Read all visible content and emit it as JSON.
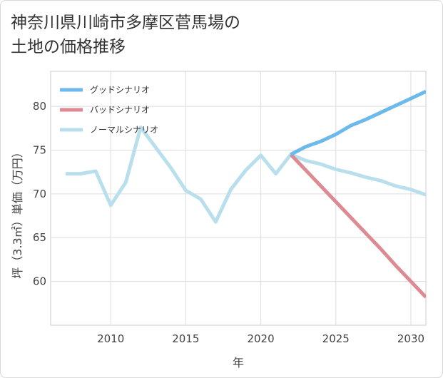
{
  "page": {
    "title_line1": "神奈川県川崎市多摩区菅馬場の",
    "title_line2": "土地の価格推移"
  },
  "chart_data": {
    "type": "line",
    "title": "神奈川県川崎市多摩区菅馬場の土地の価格推移",
    "xlabel": "年",
    "ylabel": "坪（3.3㎡）単価（万円）",
    "xlim": [
      2006,
      2031
    ],
    "ylim": [
      55,
      84
    ],
    "x_ticks": [
      2010,
      2015,
      2020,
      2025,
      2030
    ],
    "y_ticks": [
      60,
      65,
      70,
      75,
      80
    ],
    "grid": true,
    "legend_position": "top-left",
    "series": [
      {
        "name": "グッドシナリオ",
        "color": "#6cb9ec",
        "x": [
          2022,
          2023,
          2024,
          2025,
          2026,
          2027,
          2028,
          2029,
          2030,
          2031
        ],
        "values": [
          74.5,
          75.4,
          76.0,
          76.8,
          77.8,
          78.5,
          79.3,
          80.1,
          80.9,
          81.7
        ]
      },
      {
        "name": "バッドシナリオ",
        "color": "#dd8a92",
        "x": [
          2022,
          2023,
          2024,
          2025,
          2026,
          2027,
          2028,
          2029,
          2030,
          2031
        ],
        "values": [
          74.5,
          72.7,
          70.9,
          69.1,
          67.3,
          65.5,
          63.7,
          61.8,
          60.0,
          58.2
        ]
      },
      {
        "name": "ノーマルシナリオ",
        "color": "#badfec",
        "x": [
          2007,
          2008,
          2009,
          2010,
          2011,
          2012,
          2013,
          2014,
          2015,
          2016,
          2017,
          2018,
          2019,
          2020,
          2021,
          2022,
          2023,
          2024,
          2025,
          2026,
          2027,
          2028,
          2029,
          2030,
          2031
        ],
        "values": [
          72.3,
          72.3,
          72.6,
          68.7,
          71.3,
          77.6,
          75.3,
          73.0,
          70.4,
          69.4,
          66.8,
          70.5,
          72.7,
          74.4,
          72.3,
          74.5,
          73.8,
          73.4,
          72.8,
          72.4,
          71.9,
          71.5,
          70.9,
          70.5,
          69.9
        ]
      }
    ]
  }
}
